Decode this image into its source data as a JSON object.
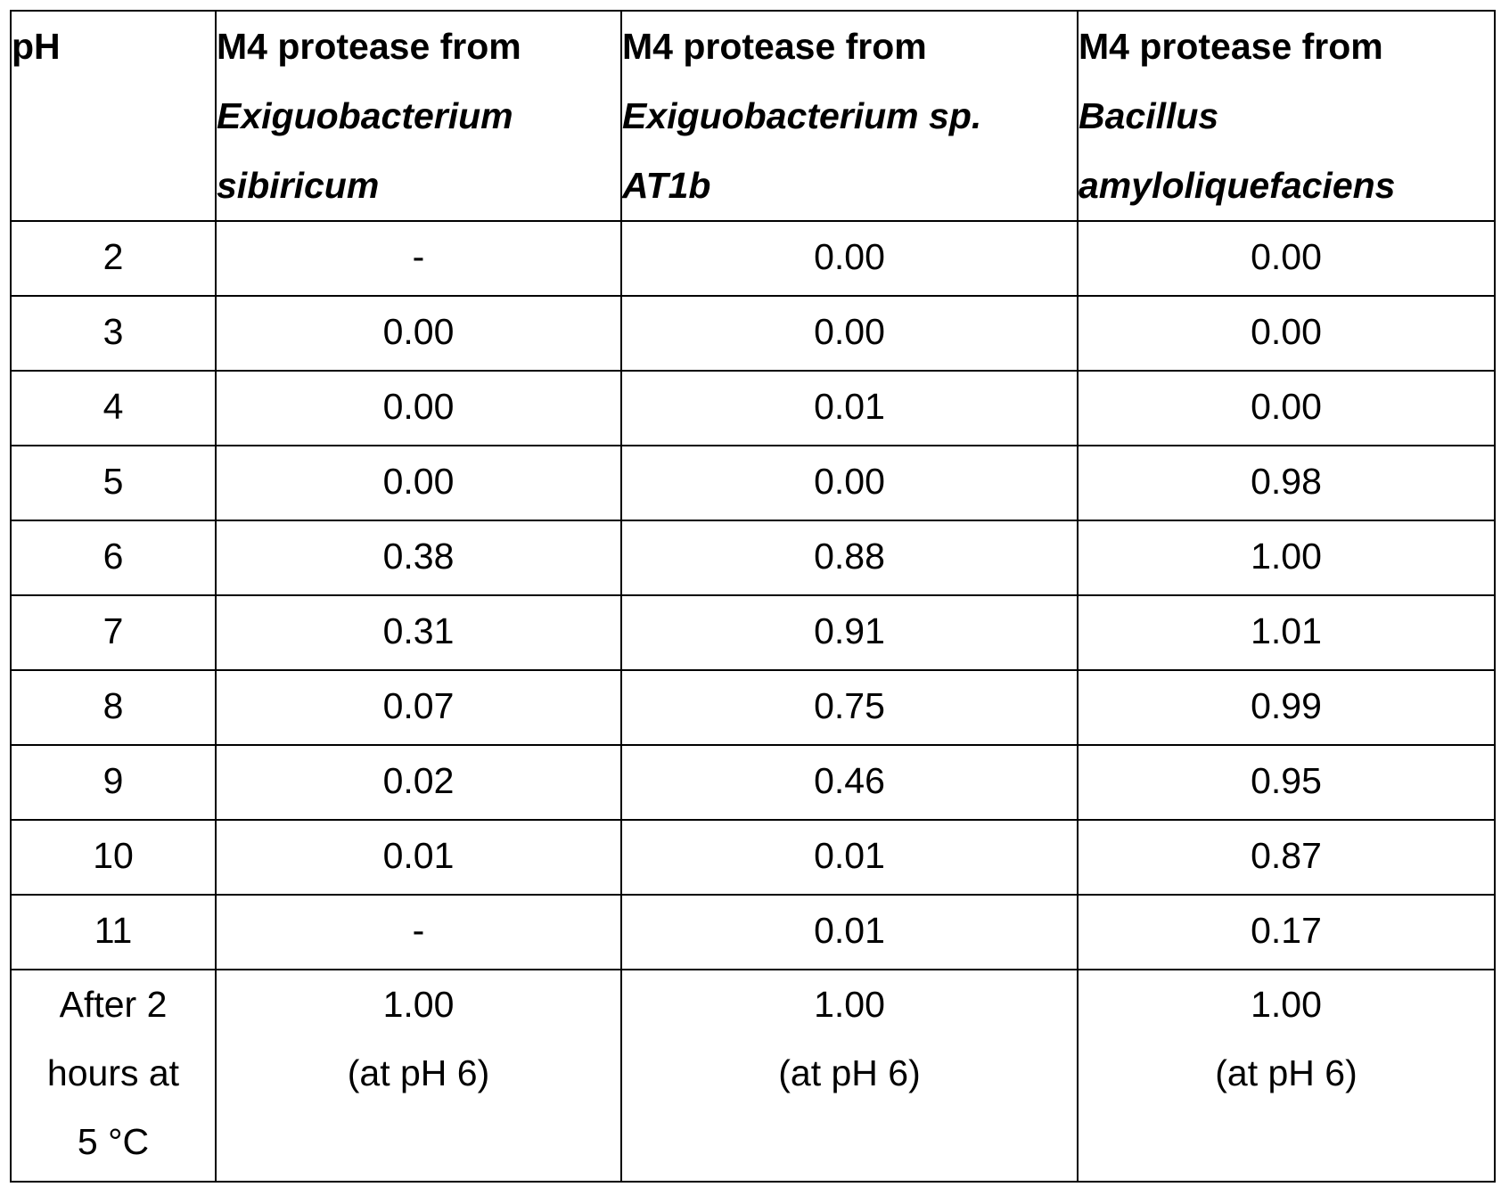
{
  "table": {
    "headers": [
      {
        "lines": [
          {
            "text": "pH",
            "italic": false
          }
        ]
      },
      {
        "lines": [
          {
            "text": "M4 protease from",
            "italic": false
          },
          {
            "text": "Exiguobacterium",
            "italic": true
          },
          {
            "text": "sibiricum",
            "italic": true
          }
        ]
      },
      {
        "lines": [
          {
            "text": "M4 protease from",
            "italic": false
          },
          {
            "text": "Exiguobacterium sp.",
            "italic": true
          },
          {
            "text": "AT1b",
            "italic": true
          }
        ]
      },
      {
        "lines": [
          {
            "text": "M4 protease from",
            "italic": false
          },
          {
            "text": "Bacillus",
            "italic": true
          },
          {
            "text": "amyloliquefaciens",
            "italic": true
          }
        ]
      }
    ],
    "rows": [
      [
        "2",
        "-",
        "0.00",
        "0.00"
      ],
      [
        "3",
        "0.00",
        "0.00",
        "0.00"
      ],
      [
        "4",
        "0.00",
        "0.01",
        "0.00"
      ],
      [
        "5",
        "0.00",
        "0.00",
        "0.98"
      ],
      [
        "6",
        "0.38",
        "0.88",
        "1.00"
      ],
      [
        "7",
        "0.31",
        "0.91",
        "1.01"
      ],
      [
        "8",
        "0.07",
        "0.75",
        "0.99"
      ],
      [
        "9",
        "0.02",
        "0.46",
        "0.95"
      ],
      [
        "10",
        "0.01",
        "0.01",
        "0.87"
      ],
      [
        "11",
        "-",
        "0.01",
        "0.17"
      ]
    ],
    "last_row": [
      [
        "After 2",
        "hours at",
        "5 °C"
      ],
      [
        "1.00",
        "(at pH 6)"
      ],
      [
        "1.00",
        "(at pH 6)"
      ],
      [
        "1.00",
        "(at pH 6)"
      ]
    ]
  }
}
